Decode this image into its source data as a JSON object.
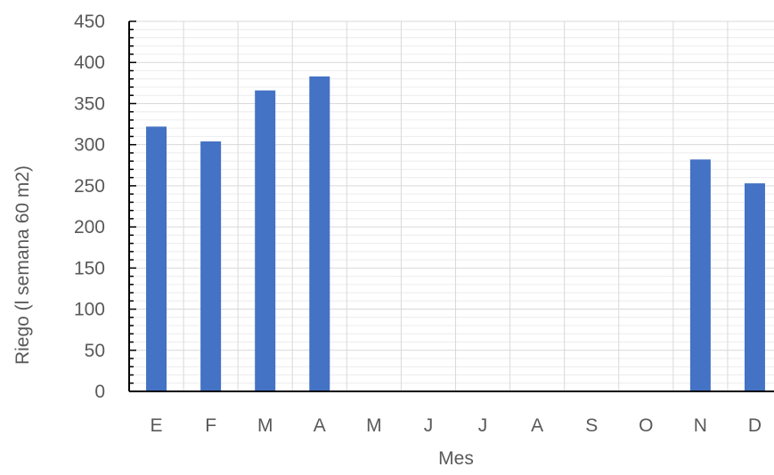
{
  "chart_data": {
    "type": "bar",
    "categories": [
      "E",
      "F",
      "M",
      "A",
      "M",
      "J",
      "J",
      "A",
      "S",
      "O",
      "N",
      "D"
    ],
    "values": [
      322,
      304,
      366,
      383,
      0,
      0,
      0,
      0,
      0,
      0,
      282,
      253
    ],
    "xlabel": "Mes",
    "ylabel": "Riego (l semana 60 m2)",
    "ylim": [
      0,
      450
    ],
    "yticks": [
      0,
      50,
      100,
      150,
      200,
      250,
      300,
      350,
      400,
      450
    ],
    "grid": true,
    "bar_color": "#4472C4"
  }
}
